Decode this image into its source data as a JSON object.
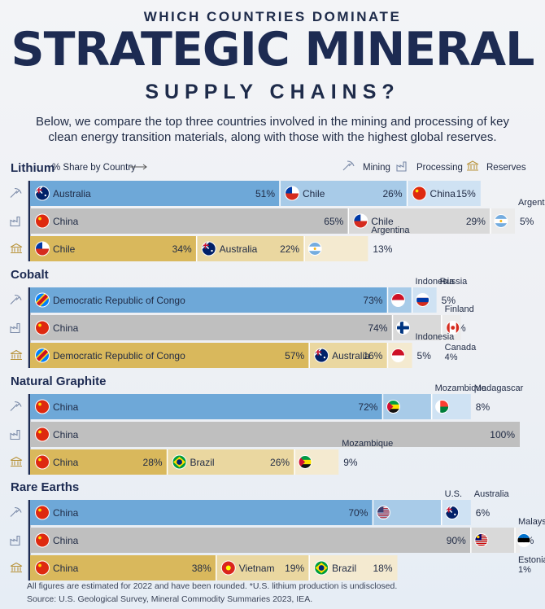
{
  "header": {
    "kicker": "WHICH COUNTRIES DOMINATE",
    "title": "STRATEGIC MINERAL",
    "subtitle": "SUPPLY CHAINS?",
    "intro": "Below, we compare the top three countries involved in the mining and processing of key clean energy transition materials, along with those with the highest global reserves."
  },
  "legend": {
    "share_label": "% Share by Country",
    "mining": "Mining",
    "processing": "Processing",
    "reserves": "Reserves"
  },
  "colors": {
    "mining": "#6ea8d8",
    "mining_light": "#a8cbe8",
    "mining_lighter": "#cfe2f3",
    "processing": "#bfbfbf",
    "processing_light": "#d9d9d9",
    "processing_lighter": "#ebebeb",
    "reserves": "#d9b85c",
    "reserves_light": "#ead7a0",
    "reserves_lighter": "#f4ead0",
    "title": "#1d2b52"
  },
  "chart_data": {
    "type": "bar",
    "title": "Strategic Mineral Supply Chains",
    "xlabel": "% Share by Country",
    "xlim": [
      0,
      100
    ],
    "minerals": [
      {
        "name": "Lithium",
        "rows": [
          {
            "stage": "Mining",
            "entries": [
              {
                "country": "Australia",
                "value": 51,
                "value_label": "51%",
                "flag": "australia-flag"
              },
              {
                "country": "Chile",
                "value": 26,
                "value_label": "26%",
                "flag": "chile-flag"
              },
              {
                "country": "China",
                "value": 15,
                "value_label": "15%",
                "flag": "china-flag"
              }
            ]
          },
          {
            "stage": "Processing",
            "entries": [
              {
                "country": "China",
                "value": 65,
                "value_label": "65%",
                "flag": "china-flag"
              },
              {
                "country": "Chile",
                "value": 29,
                "value_label": "29%",
                "flag": "chile-flag"
              },
              {
                "country": "Argentina",
                "value": 5,
                "value_label": "5%",
                "flag": "argentina-flag"
              }
            ]
          },
          {
            "stage": "Reserves",
            "entries": [
              {
                "country": "Chile",
                "value": 34,
                "value_label": "34%",
                "flag": "chile-flag"
              },
              {
                "country": "Australia",
                "value": 22,
                "value_label": "22%",
                "flag": "australia-flag"
              },
              {
                "country": "Argentina",
                "value": 13,
                "value_label": "13%",
                "flag": "argentina-flag"
              }
            ]
          }
        ]
      },
      {
        "name": "Cobalt",
        "rows": [
          {
            "stage": "Mining",
            "entries": [
              {
                "country": "Democratic Republic of Congo",
                "value": 73,
                "value_label": "73%",
                "flag": "drc-flag"
              },
              {
                "country": "Indonesia",
                "value": 5,
                "value_label": "5%",
                "flag": "indonesia-flag"
              },
              {
                "country": "Russia",
                "value": 5,
                "value_label": "5%",
                "flag": "russia-flag"
              }
            ]
          },
          {
            "stage": "Processing",
            "entries": [
              {
                "country": "China",
                "value": 74,
                "value_label": "74%",
                "flag": "china-flag"
              },
              {
                "country": "Finland",
                "value": 10,
                "value_label": "10%",
                "flag": "finland-flag"
              },
              {
                "country": "Canada",
                "value": 4,
                "value_label": "4%",
                "flag": "canada-flag"
              }
            ]
          },
          {
            "stage": "Reserves",
            "entries": [
              {
                "country": "Democratic Republic of Congo",
                "value": 57,
                "value_label": "57%",
                "flag": "drc-flag"
              },
              {
                "country": "Australia",
                "value": 16,
                "value_label": "16%",
                "flag": "australia-flag"
              },
              {
                "country": "Indonesia",
                "value": 5,
                "value_label": "5%",
                "flag": "indonesia-flag"
              }
            ]
          }
        ]
      },
      {
        "name": "Natural Graphite",
        "rows": [
          {
            "stage": "Mining",
            "entries": [
              {
                "country": "China",
                "value": 72,
                "value_label": "72%",
                "flag": "china-flag"
              },
              {
                "country": "Mozambique",
                "value": 10,
                "value_label": "10%",
                "flag": "mozambique-flag"
              },
              {
                "country": "Madagascar",
                "value": 8,
                "value_label": "8%",
                "flag": "madagascar-flag"
              }
            ]
          },
          {
            "stage": "Processing",
            "entries": [
              {
                "country": "China",
                "value": 100,
                "value_label": "100%",
                "flag": "china-flag"
              }
            ]
          },
          {
            "stage": "Reserves",
            "entries": [
              {
                "country": "China",
                "value": 28,
                "value_label": "28%",
                "flag": "china-flag"
              },
              {
                "country": "Brazil",
                "value": 26,
                "value_label": "26%",
                "flag": "brazil-flag"
              },
              {
                "country": "Mozambique",
                "value": 9,
                "value_label": "9%",
                "flag": "mozambique-flag"
              }
            ]
          }
        ]
      },
      {
        "name": "Rare Earths",
        "rows": [
          {
            "stage": "Mining",
            "entries": [
              {
                "country": "China",
                "value": 70,
                "value_label": "70%",
                "flag": "china-flag"
              },
              {
                "country": "U.S.",
                "value": 14,
                "value_label": "14%",
                "flag": "us-flag"
              },
              {
                "country": "Australia",
                "value": 6,
                "value_label": "6%",
                "flag": "australia-flag"
              }
            ]
          },
          {
            "stage": "Processing",
            "entries": [
              {
                "country": "China",
                "value": 90,
                "value_label": "90%",
                "flag": "china-flag"
              },
              {
                "country": "Malaysia",
                "value": 9,
                "value_label": "9%",
                "flag": "malaysia-flag"
              },
              {
                "country": "Estonia",
                "value": 1,
                "value_label": "1%",
                "flag": "estonia-flag"
              }
            ]
          },
          {
            "stage": "Reserves",
            "entries": [
              {
                "country": "China",
                "value": 38,
                "value_label": "38%",
                "flag": "china-flag"
              },
              {
                "country": "Vietnam",
                "value": 19,
                "value_label": "19%",
                "flag": "vietnam-flag"
              },
              {
                "country": "Brazil",
                "value": 18,
                "value_label": "18%",
                "flag": "brazil-flag"
              }
            ]
          }
        ]
      }
    ]
  },
  "footer": {
    "note": "All figures are estimated for 2022 and have been rounded. *U.S. lithium production is undisclosed.",
    "source": "Source: U.S. Geological Survey, Mineral Commodity Summaries 2023, IEA."
  }
}
